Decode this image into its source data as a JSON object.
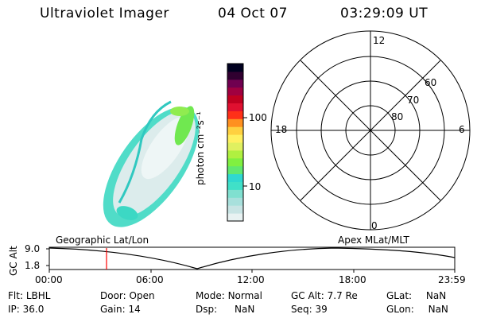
{
  "header": {
    "instrument": "Ultraviolet Imager",
    "date": "04 Oct 07",
    "time": "03:29:09 UT"
  },
  "colorbar": {
    "label": "photon cm⁻²s⁻¹",
    "ticks": [
      "100",
      "10"
    ],
    "colors": [
      "#e8f2f2",
      "#c8e4e4",
      "#a8e0dc",
      "#80e0d0",
      "#40e0c8",
      "#30d8d0",
      "#60e870",
      "#80f040",
      "#b0f040",
      "#e0f060",
      "#fff060",
      "#ffd040",
      "#ff9020",
      "#ff3018",
      "#e01030",
      "#c00020",
      "#a00040",
      "#700050",
      "#300030",
      "#000020"
    ]
  },
  "polar": {
    "mlt_labels": [
      "12",
      "18",
      "6",
      "0"
    ],
    "lat_labels": [
      "60",
      "70",
      "80"
    ]
  },
  "timeline": {
    "axis_label": "GC Alt",
    "y_ticks": [
      "9.0",
      "1.8"
    ],
    "x_ticks": [
      "00:00",
      "06:00",
      "12:00",
      "18:00",
      "23:59"
    ],
    "left_caption": "Geographic Lat/Lon",
    "right_caption": "Apex MLat/MLT",
    "marker_color": "#ff0000"
  },
  "status": {
    "rows": [
      [
        {
          "k": "Flt:",
          "v": "LBHL"
        },
        {
          "k": "Door:",
          "v": "Open"
        },
        {
          "k": "Mode:",
          "v": "Normal"
        },
        {
          "k": "GC Alt:",
          "v": "7.7 Re"
        },
        {
          "k": "GLat:",
          "v": "NaN"
        }
      ],
      [
        {
          "k": "IP:",
          "v": "36.0"
        },
        {
          "k": "Gain:",
          "v": "14"
        },
        {
          "k": "Dsp:",
          "v": "NaN"
        },
        {
          "k": "Seq:",
          "v": "39"
        },
        {
          "k": "GLon:",
          "v": "NaN"
        }
      ]
    ]
  }
}
